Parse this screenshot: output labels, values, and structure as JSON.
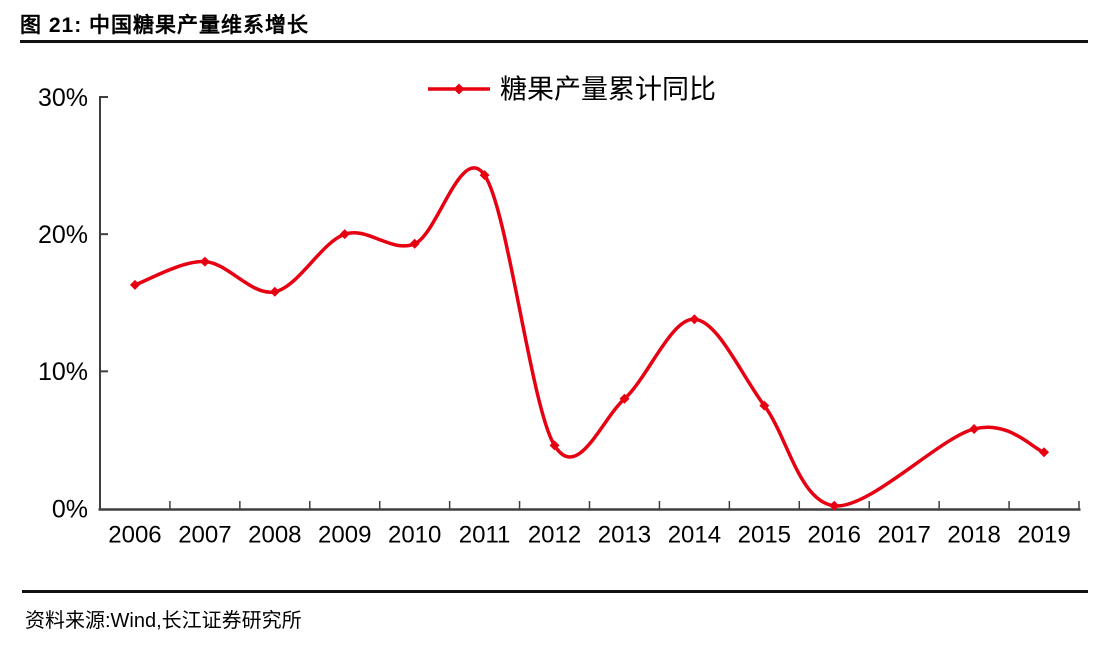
{
  "page": {
    "title": "图  21: 中国糖果产量维系增长",
    "source_note": "资料来源:Wind,长江证券研究所"
  },
  "chart_data": {
    "type": "line",
    "title": "图 21: 中国糖果产量维系增长",
    "xlabel": "",
    "ylabel": "",
    "categories": [
      "2006",
      "2007",
      "2008",
      "2009",
      "2010",
      "2011",
      "2012",
      "2013",
      "2014",
      "2015",
      "2016",
      "2017",
      "2018",
      "2019"
    ],
    "series": [
      {
        "name": "糖果产量累计同比",
        "values": [
          16.3,
          18.0,
          15.8,
          20.0,
          19.3,
          24.3,
          4.6,
          8.0,
          13.8,
          7.5,
          0.2,
          null,
          5.8,
          4.1
        ],
        "color": "#e60012",
        "marker": "diamond",
        "smooth": true
      }
    ],
    "legend": [
      "糖果产量累计同比"
    ],
    "legend_position": "top-center",
    "ylim": [
      0,
      30
    ],
    "ytick_values": [
      0,
      10,
      20,
      30
    ],
    "ytick_labels": [
      "0%",
      "10%",
      "20%",
      "30%"
    ],
    "grid": false,
    "axis_color": "#3f3f3f",
    "text_color": "#000000"
  }
}
